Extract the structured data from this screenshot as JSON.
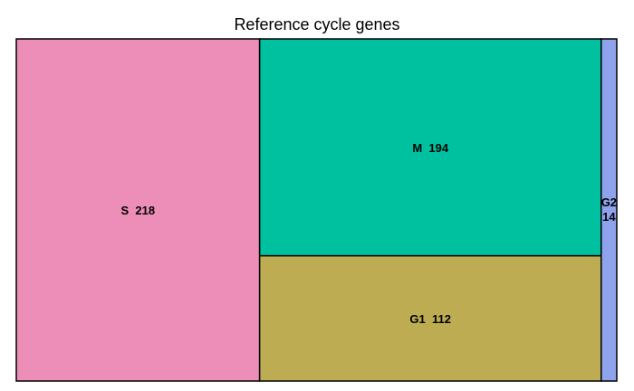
{
  "chart_data": {
    "type": "treemap",
    "title": "Reference cycle genes",
    "cells": [
      {
        "name": "S",
        "value": 218,
        "label": "S  218",
        "color": "#EC8EB7"
      },
      {
        "name": "M",
        "value": 194,
        "label": "M  194",
        "color": "#00C19F"
      },
      {
        "name": "G1",
        "value": 112,
        "label": "G1  112",
        "color": "#BEAC52"
      },
      {
        "name": "G2",
        "value": 14,
        "label_lines": [
          "G2",
          "14"
        ],
        "color": "#8FA3EC"
      }
    ]
  }
}
